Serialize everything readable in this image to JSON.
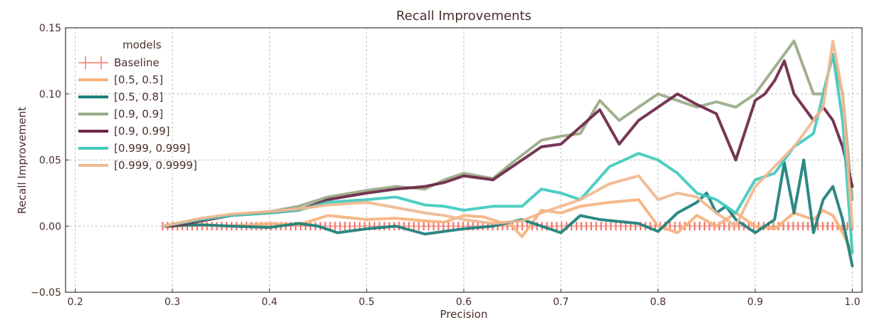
{
  "chart_data": {
    "type": "line",
    "title": "Recall Improvements",
    "xlabel": "Precision",
    "ylabel": "Recall Improvement",
    "xlim": [
      0.19,
      1.01
    ],
    "ylim": [
      -0.05,
      0.15
    ],
    "xticks": [
      0.2,
      0.3,
      0.4,
      0.5,
      0.6,
      0.7,
      0.8,
      0.9,
      1.0
    ],
    "xtick_labels": [
      "0.2",
      "0.3",
      "0.4",
      "0.5",
      "0.6",
      "0.7",
      "0.8",
      "0.9",
      "1.0"
    ],
    "yticks": [
      -0.05,
      0.0,
      0.05,
      0.1,
      0.15
    ],
    "ytick_labels": [
      "−0.05",
      "0.00",
      "0.05",
      "0.10",
      "0.15"
    ],
    "grid": true,
    "legend": {
      "title": "models",
      "position": "top-left"
    },
    "series": [
      {
        "name": "Baseline",
        "style": "markers",
        "color": "#f4756a",
        "x": [
          0.29,
          1.0
        ],
        "y": [
          0.0,
          0.0
        ]
      },
      {
        "name": "[0.5, 0.5]",
        "style": "line",
        "color": "#f5b27d",
        "x": [
          0.29,
          0.33,
          0.36,
          0.4,
          0.43,
          0.46,
          0.5,
          0.53,
          0.56,
          0.58,
          0.6,
          0.62,
          0.65,
          0.66,
          0.68,
          0.7,
          0.72,
          0.75,
          0.78,
          0.8,
          0.82,
          0.84,
          0.86,
          0.87,
          0.88,
          0.9,
          0.92,
          0.94,
          0.96,
          0.97,
          0.98,
          0.99,
          1.0
        ],
        "y": [
          0.0,
          0.001,
          0.0,
          0.002,
          0.001,
          0.008,
          0.005,
          0.006,
          0.004,
          0.003,
          0.008,
          0.007,
          0.0,
          -0.008,
          0.012,
          0.01,
          0.015,
          0.018,
          0.02,
          0.0,
          -0.005,
          0.008,
          0.0,
          0.005,
          0.01,
          0.0,
          -0.002,
          0.01,
          0.005,
          0.012,
          0.008,
          -0.005,
          -0.02
        ]
      },
      {
        "name": "[0.5, 0.8]",
        "style": "line",
        "color": "#1a7f7a",
        "x": [
          0.29,
          0.33,
          0.36,
          0.4,
          0.43,
          0.45,
          0.47,
          0.5,
          0.53,
          0.56,
          0.6,
          0.63,
          0.66,
          0.68,
          0.7,
          0.72,
          0.74,
          0.78,
          0.8,
          0.82,
          0.84,
          0.85,
          0.86,
          0.87,
          0.88,
          0.9,
          0.92,
          0.93,
          0.94,
          0.95,
          0.96,
          0.97,
          0.98,
          0.99,
          1.0
        ],
        "y": [
          0.0,
          0.001,
          0.0,
          -0.001,
          0.002,
          0.0,
          -0.005,
          -0.002,
          0.0,
          -0.006,
          -0.002,
          0.0,
          0.005,
          0.0,
          -0.005,
          0.008,
          0.005,
          0.002,
          -0.004,
          0.01,
          0.018,
          0.025,
          0.01,
          0.015,
          0.005,
          -0.005,
          0.005,
          0.048,
          0.01,
          0.05,
          -0.005,
          0.02,
          0.03,
          0.005,
          -0.03
        ]
      },
      {
        "name": "[0.9, 0.9]",
        "style": "line",
        "color": "#98aa85",
        "x": [
          0.29,
          0.3,
          0.33,
          0.36,
          0.4,
          0.43,
          0.46,
          0.5,
          0.53,
          0.56,
          0.58,
          0.6,
          0.63,
          0.65,
          0.68,
          0.7,
          0.72,
          0.74,
          0.76,
          0.78,
          0.8,
          0.82,
          0.84,
          0.86,
          0.88,
          0.9,
          0.91,
          0.92,
          0.93,
          0.94,
          0.95,
          0.96,
          0.97,
          0.98,
          0.99,
          1.0
        ],
        "y": [
          0.0,
          0.0,
          0.004,
          0.008,
          0.011,
          0.015,
          0.022,
          0.027,
          0.03,
          0.028,
          0.035,
          0.04,
          0.036,
          0.048,
          0.065,
          0.068,
          0.07,
          0.095,
          0.08,
          0.09,
          0.1,
          0.095,
          0.09,
          0.094,
          0.09,
          0.1,
          0.11,
          0.12,
          0.13,
          0.14,
          0.12,
          0.1,
          0.1,
          0.13,
          0.1,
          0.02
        ]
      },
      {
        "name": "[0.9, 0.99]",
        "style": "line",
        "color": "#6b2546",
        "x": [
          0.29,
          0.3,
          0.33,
          0.36,
          0.4,
          0.43,
          0.46,
          0.5,
          0.53,
          0.56,
          0.58,
          0.6,
          0.63,
          0.65,
          0.68,
          0.7,
          0.72,
          0.74,
          0.76,
          0.78,
          0.8,
          0.82,
          0.84,
          0.86,
          0.88,
          0.9,
          0.91,
          0.92,
          0.93,
          0.94,
          0.95,
          0.96,
          0.97,
          0.98,
          0.99,
          1.0
        ],
        "y": [
          0.0,
          0.0,
          0.004,
          0.008,
          0.01,
          0.012,
          0.02,
          0.025,
          0.028,
          0.03,
          0.033,
          0.038,
          0.035,
          0.045,
          0.06,
          0.062,
          0.075,
          0.088,
          0.062,
          0.08,
          0.09,
          0.1,
          0.092,
          0.085,
          0.05,
          0.095,
          0.1,
          0.11,
          0.125,
          0.1,
          0.09,
          0.08,
          0.09,
          0.08,
          0.06,
          0.03
        ]
      },
      {
        "name": "[0.999, 0.999]",
        "style": "line",
        "color": "#40c9be",
        "x": [
          0.29,
          0.33,
          0.36,
          0.4,
          0.43,
          0.46,
          0.5,
          0.53,
          0.56,
          0.58,
          0.6,
          0.63,
          0.66,
          0.68,
          0.7,
          0.72,
          0.75,
          0.78,
          0.8,
          0.82,
          0.84,
          0.86,
          0.88,
          0.9,
          0.92,
          0.94,
          0.96,
          0.97,
          0.98,
          0.99,
          1.0
        ],
        "y": [
          0.0,
          0.005,
          0.008,
          0.01,
          0.012,
          0.018,
          0.02,
          0.022,
          0.016,
          0.015,
          0.012,
          0.015,
          0.015,
          0.028,
          0.025,
          0.02,
          0.045,
          0.055,
          0.05,
          0.04,
          0.025,
          0.02,
          0.01,
          0.035,
          0.04,
          0.06,
          0.07,
          0.1,
          0.13,
          0.08,
          -0.02
        ]
      },
      {
        "name": "[0.999, 0.9999]",
        "style": "line",
        "color": "#f0b790",
        "x": [
          0.29,
          0.33,
          0.36,
          0.4,
          0.43,
          0.46,
          0.5,
          0.53,
          0.56,
          0.58,
          0.6,
          0.63,
          0.66,
          0.68,
          0.7,
          0.72,
          0.75,
          0.78,
          0.8,
          0.82,
          0.84,
          0.86,
          0.88,
          0.9,
          0.92,
          0.94,
          0.96,
          0.97,
          0.98,
          0.99,
          1.0
        ],
        "y": [
          0.0,
          0.006,
          0.009,
          0.011,
          0.013,
          0.016,
          0.018,
          0.014,
          0.01,
          0.008,
          0.005,
          0.002,
          0.004,
          0.01,
          0.015,
          0.02,
          0.032,
          0.038,
          0.02,
          0.025,
          0.022,
          0.01,
          0.0,
          0.03,
          0.045,
          0.06,
          0.08,
          0.09,
          0.14,
          0.1,
          0.0
        ]
      }
    ]
  }
}
